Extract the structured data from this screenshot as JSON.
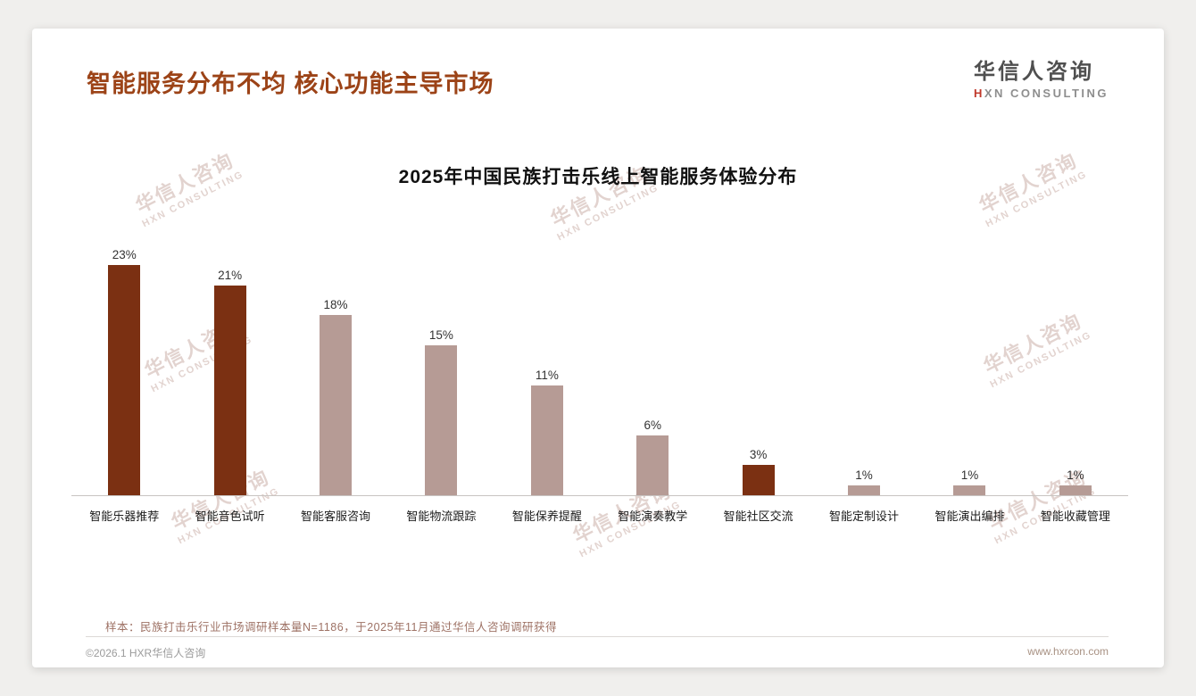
{
  "header": {
    "title": "智能服务分布不均 核心功能主导市场"
  },
  "logo": {
    "cn": "华信人咨询",
    "en_accent": "H",
    "en_rest": "XN CONSULTING"
  },
  "watermark": {
    "line1": "华信人咨询",
    "line2": "HXN CONSULTING"
  },
  "chart_data": {
    "type": "bar",
    "title": "2025年中国民族打击乐线上智能服务体验分布",
    "categories": [
      "智能乐器推荐",
      "智能音色试听",
      "智能客服咨询",
      "智能物流跟踪",
      "智能保养提醒",
      "智能演奏教学",
      "智能社区交流",
      "智能定制设计",
      "智能演出编排",
      "智能收藏管理"
    ],
    "values": [
      23,
      21,
      18,
      15,
      11,
      6,
      3,
      1,
      1,
      1
    ],
    "labels": [
      "23%",
      "21%",
      "18%",
      "15%",
      "11%",
      "6%",
      "3%",
      "1%",
      "1%",
      "1%"
    ],
    "bar_colors": [
      "#7b3012",
      "#7b3012",
      "#b69b95",
      "#b69b95",
      "#b69b95",
      "#b69b95",
      "#7b3012",
      "#b69b95",
      "#b69b95",
      "#b69b95"
    ],
    "ylim": [
      0,
      25
    ],
    "xlabel": "",
    "ylabel": "",
    "grid": false,
    "legend": false,
    "colors": {
      "primary_dark": "#7b3012",
      "secondary_light": "#b69b95"
    }
  },
  "footer": {
    "sample_note": "样本：民族打击乐行业市场调研样本量N=1186，于2025年11月通过华信人咨询调研获得",
    "copyright": "©2026.1 HXR华信人咨询",
    "website": "www.hxrcon.com"
  }
}
